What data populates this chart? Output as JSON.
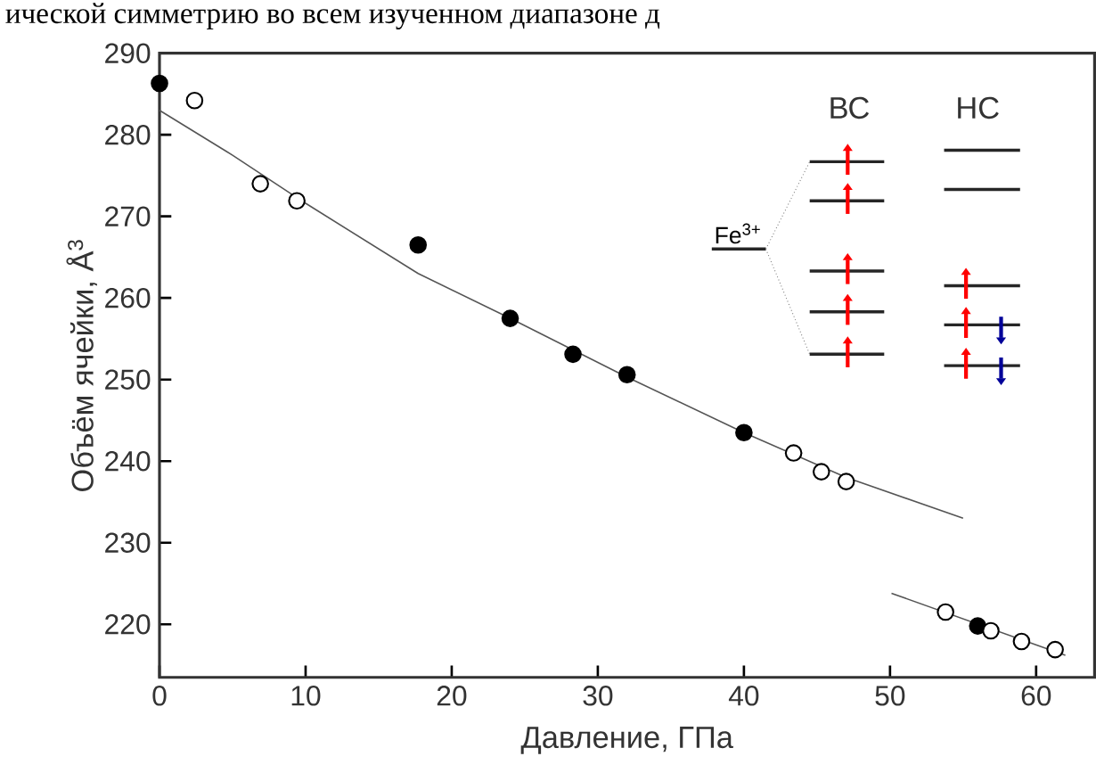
{
  "chart_data": {
    "type": "scatter",
    "xlabel": "Давление, ГПа",
    "ylabel": "Объём ячейки, Å$^{3}$",
    "xlim": [
      0,
      64
    ],
    "ylim": [
      213.5,
      290
    ],
    "xticks": [
      0,
      10,
      20,
      30,
      40,
      50,
      60
    ],
    "yticks": [
      220,
      230,
      240,
      250,
      260,
      270,
      280,
      290
    ],
    "marker": "circle",
    "grid": false,
    "annotations": [
      "ической симметрию во всем изученном диапазоне д",
      "ВС",
      "НС",
      "Fe$^{3+}$"
    ],
    "series": [
      {
        "type": "line",
        "color": "#555555",
        "marker": "none",
        "x": [
          0,
          5,
          10,
          17.7,
          24,
          32,
          40,
          47,
          55
        ],
        "values": [
          283,
          277.5,
          271.6,
          263,
          257.5,
          250.3,
          243.5,
          238,
          233
        ]
      },
      {
        "type": "line",
        "color": "#555555",
        "marker": "none",
        "x": [
          50.1,
          62
        ],
        "values": [
          223.8,
          216.2
        ]
      },
      {
        "color": "#000000",
        "x": [
          0,
          17.7,
          24,
          28.3,
          32,
          40,
          56
        ],
        "values": [
          286.3,
          266.5,
          257.5,
          253.1,
          250.6,
          243.5,
          219.8
        ]
      },
      {
        "color": "#ffffff",
        "x": [
          2.4,
          6.9,
          9.4,
          43.4,
          45.3,
          47,
          53.8,
          56.9,
          59,
          61.3
        ],
        "values": [
          284.2,
          274,
          271.9,
          241,
          238.7,
          237.5,
          221.5,
          219.2,
          217.9,
          216.9
        ]
      }
    ]
  }
}
